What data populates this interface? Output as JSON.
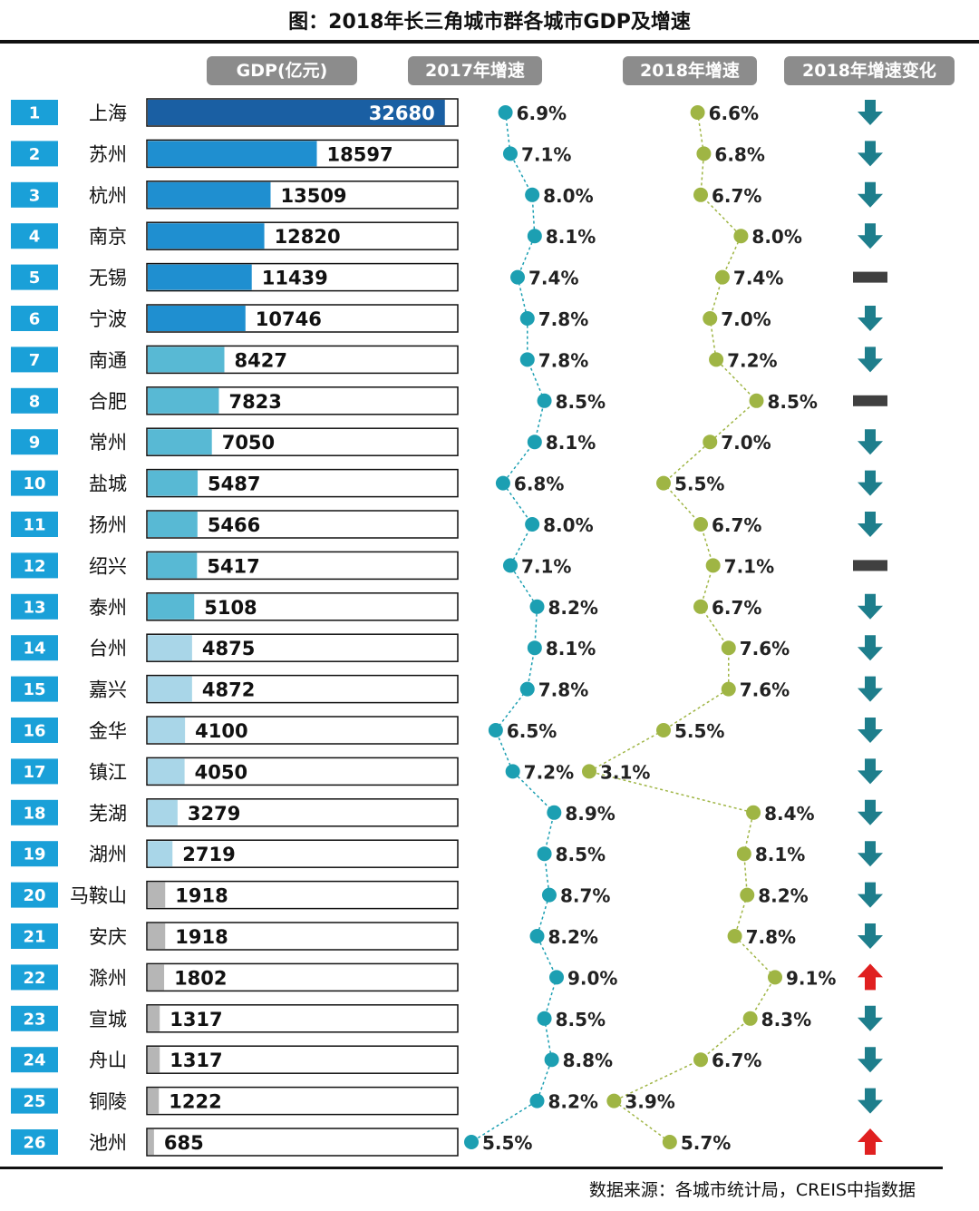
{
  "title": "图：2018年长三角城市群各城市GDP及增速",
  "headers": {
    "gdp": "GDP(亿元)",
    "growth_2017": "2017年增速",
    "growth_2018": "2018年增速",
    "change_2018": "2018年增速变化"
  },
  "source": "数据来源：各城市统计局，CREIS中指数据",
  "colors": {
    "rank_box": "#1aa0d8",
    "bar_outline": "#111111",
    "bar_tier_1": "#1a5fa3",
    "bar_tier_2": "#1f8fd0",
    "bar_tier_3": "#58b9d4",
    "bar_tier_4": "#a9d6e8",
    "bar_tier_5": "#b6b6b6",
    "dot_2017": "#1c9fb2",
    "dot_2018": "#9fb544",
    "arrow_down": "#1e7e8c",
    "arrow_up": "#e02020",
    "flat": "#404040"
  },
  "chart_data": {
    "type": "table",
    "columns": [
      "排名",
      "城市",
      "GDP(亿元)",
      "2017年增速",
      "2018年增速",
      "2018年增速变化"
    ],
    "ranks": [
      "1",
      "2",
      "3",
      "4",
      "5",
      "6",
      "7",
      "8",
      "9",
      "10",
      "11",
      "12",
      "13",
      "14",
      "15",
      "16",
      "17",
      "18",
      "19",
      "20",
      "21",
      "22",
      "23",
      "24",
      "25",
      "26"
    ],
    "cities": [
      "上海",
      "苏州",
      "杭州",
      "南京",
      "无锡",
      "宁波",
      "南通",
      "合肥",
      "常州",
      "盐城",
      "扬州",
      "绍兴",
      "泰州",
      "台州",
      "嘉兴",
      "金华",
      "镇江",
      "芜湖",
      "湖州",
      "马鞍山",
      "安庆",
      "滁州",
      "宣城",
      "舟山",
      "铜陵",
      "池州"
    ],
    "gdp": [
      32680,
      18597,
      13509,
      12820,
      11439,
      10746,
      8427,
      7823,
      7050,
      5487,
      5466,
      5417,
      5108,
      4875,
      4872,
      4100,
      4050,
      3279,
      2719,
      1918,
      1918,
      1802,
      1317,
      1317,
      1222,
      685
    ],
    "gdp_labels": [
      "32680",
      "18597",
      "13509",
      "12820",
      "11439",
      "10746",
      "8427",
      "7823",
      "7050",
      "5487",
      "5466",
      "5417",
      "5108",
      "4875",
      "4872",
      "4100",
      "4050",
      "3279",
      "2719",
      "1918",
      "1918",
      "1802",
      "1317",
      "1317",
      "1222",
      "685"
    ],
    "bar_tier": [
      1,
      2,
      2,
      2,
      2,
      2,
      3,
      3,
      3,
      3,
      3,
      3,
      3,
      4,
      4,
      4,
      4,
      4,
      4,
      5,
      5,
      5,
      5,
      5,
      5,
      5
    ],
    "gdp_max": 34000,
    "growth_2017": [
      6.9,
      7.1,
      8.0,
      8.1,
      7.4,
      7.8,
      7.8,
      8.5,
      8.1,
      6.8,
      8.0,
      7.1,
      8.2,
      8.1,
      7.8,
      6.5,
      7.2,
      8.9,
      8.5,
      8.7,
      8.2,
      9.0,
      8.5,
      8.8,
      8.2,
      5.5
    ],
    "growth_2017_labels": [
      "6.9%",
      "7.1%",
      "8.0%",
      "8.1%",
      "7.4%",
      "7.8%",
      "7.8%",
      "8.5%",
      "8.1%",
      "6.8%",
      "8.0%",
      "7.1%",
      "8.2%",
      "8.1%",
      "7.8%",
      "6.5%",
      "7.2%",
      "8.9%",
      "8.5%",
      "8.7%",
      "8.2%",
      "9.0%",
      "8.5%",
      "8.8%",
      "8.2%",
      "5.5%"
    ],
    "growth_2018": [
      6.6,
      6.8,
      6.7,
      8.0,
      7.4,
      7.0,
      7.2,
      8.5,
      7.0,
      5.5,
      6.7,
      7.1,
      6.7,
      7.6,
      7.6,
      5.5,
      3.1,
      8.4,
      8.1,
      8.2,
      7.8,
      9.1,
      8.3,
      6.7,
      3.9,
      5.7
    ],
    "growth_2018_labels": [
      "6.6%",
      "6.8%",
      "6.7%",
      "8.0%",
      "7.4%",
      "7.0%",
      "7.2%",
      "8.5%",
      "7.0%",
      "5.5%",
      "6.7%",
      "7.1%",
      "6.7%",
      "7.6%",
      "7.6%",
      "5.5%",
      "3.1%",
      "8.4%",
      "8.1%",
      "8.2%",
      "7.8%",
      "9.1%",
      "8.3%",
      "6.7%",
      "3.9%",
      "5.7%"
    ],
    "growth_2017_range": [
      5.5,
      9.0
    ],
    "growth_2018_range": [
      3.1,
      9.1
    ],
    "change": [
      "down",
      "down",
      "down",
      "down",
      "flat",
      "down",
      "down",
      "flat",
      "down",
      "down",
      "down",
      "flat",
      "down",
      "down",
      "down",
      "down",
      "down",
      "down",
      "down",
      "down",
      "down",
      "up",
      "down",
      "down",
      "down",
      "up"
    ]
  }
}
